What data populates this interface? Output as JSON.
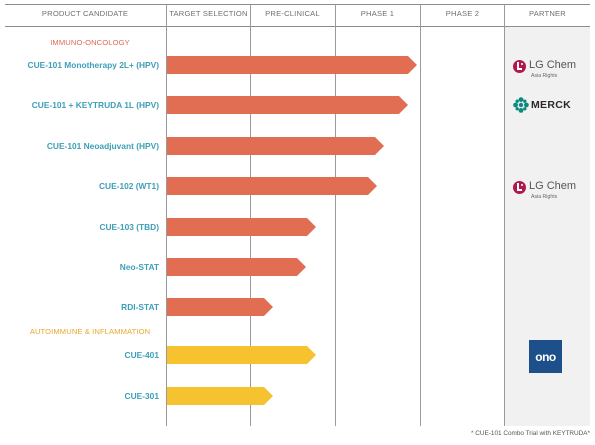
{
  "header": {
    "col_product": "PRODUCT CANDIDATE",
    "col_target": "TARGET SELECTION",
    "col_preclinical": "PRE-CLINICAL",
    "col_phase1": "PHASE 1",
    "col_phase2": "PHASE 2",
    "col_partner": "PARTNER"
  },
  "categories": {
    "immuno": "IMMUNO-ONCOLOGY",
    "autoimmune": "AUTOIMMUNE & INFLAMMATION"
  },
  "rows": [
    {
      "label": "CUE-101 Monotherapy 2L+ (HPV)",
      "stage": "Phase 1"
    },
    {
      "label": "CUE-101 + KEYTRUDA 1L (HPV)",
      "stage": "Phase 1"
    },
    {
      "label": "CUE-101 Neoadjuvant (HPV)",
      "stage": "Phase 1"
    },
    {
      "label": "CUE-102 (WT1)",
      "stage": "Phase 1"
    },
    {
      "label": "CUE-103 (TBD)",
      "stage": "Pre-clinical"
    },
    {
      "label": "Neo-STAT",
      "stage": "Pre-clinical"
    },
    {
      "label": "RDI-STAT",
      "stage": "Pre-clinical"
    },
    {
      "label": "CUE-401",
      "stage": "Pre-clinical"
    },
    {
      "label": "CUE-301",
      "stage": "Pre-clinical"
    }
  ],
  "partners": {
    "lg1": {
      "name": "LG Chem",
      "sub": "Asia Rights"
    },
    "merck": {
      "name": "MERCK"
    },
    "lg2": {
      "name": "LG Chem",
      "sub": "Asia Rights"
    },
    "ono": {
      "name": "ono"
    }
  },
  "colors": {
    "immuno_bar": "#e16d52",
    "autoimmune_bar": "#f6c22f",
    "label_text": "#3d9fb7",
    "immuno_category": "#e0694f",
    "autoimmune_category": "#e8a92a",
    "lg_brand": "#b0174a",
    "merck_brand": "#0c8a7d",
    "ono_brand": "#1d4f8a"
  },
  "footnote": "* CUE-101 Combo Trial with KEYTRUDA*"
}
